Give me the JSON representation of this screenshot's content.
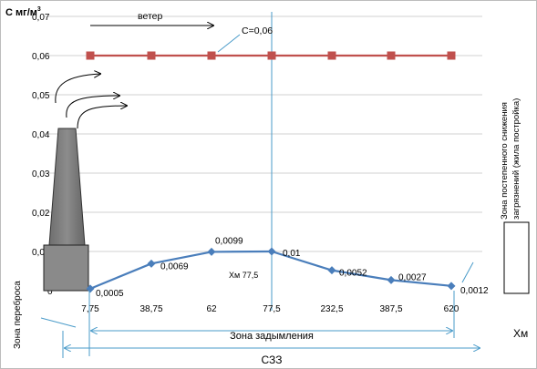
{
  "chart_data": {
    "type": "line",
    "ylabel": "С мг/м",
    "ylabel_sup": "3",
    "xlabel": "Хм",
    "y_ticks": [
      "0",
      "0,01",
      "0,02",
      "0,03",
      "0,04",
      "0,05",
      "0,06",
      "0,07"
    ],
    "ylim": [
      0,
      0.07
    ],
    "categories": [
      "7,75",
      "38,75",
      "62",
      "77,5",
      "232,5",
      "387,5",
      "620"
    ],
    "grid": "horizontal",
    "series": [
      {
        "color": "#4a7ebb",
        "marker": "diamond",
        "values": [
          0.0005,
          0.0069,
          0.0099,
          0.01,
          0.0052,
          0.0027,
          0.0012
        ],
        "labels": [
          "0,0005",
          "0,0069",
          "0,0099",
          "0,01",
          "0,0052",
          "0,0027",
          "0,0012"
        ]
      },
      {
        "color": "#c0504d",
        "marker": "square",
        "values": [
          0.06,
          0.06,
          0.06,
          0.06,
          0.06,
          0.06,
          0.06
        ]
      }
    ],
    "annotations": {
      "wind": "ветер",
      "c_line": "C=0,06",
      "xm_marker": "Хм  77,5",
      "zone_transfer": "Зона переброса",
      "zone_smoke": "Зона задымления",
      "zone_decrease_line1": "Зона постепенного снижения",
      "zone_decrease_line2": "загрязнений (жила постройка)",
      "sanitary_zone": "СЗЗ"
    }
  }
}
